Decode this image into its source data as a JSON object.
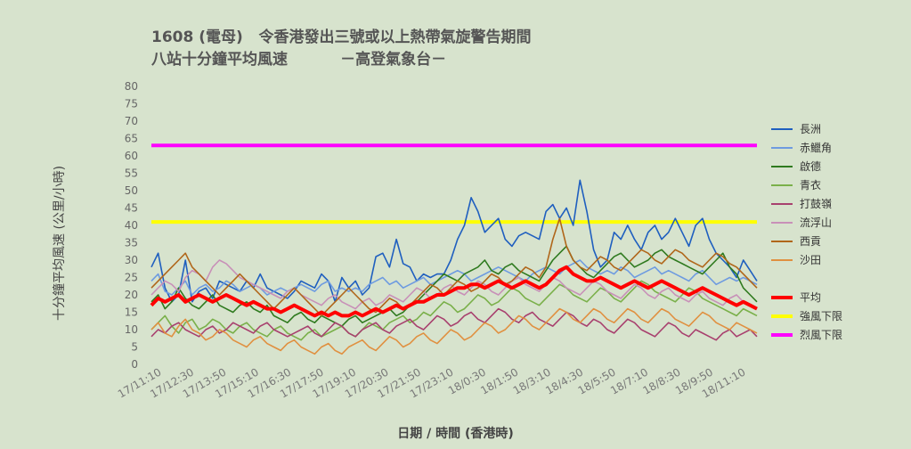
{
  "title_line1": "1608 (電母)   令香港發出三號或以上熱帶氣旋警告期間",
  "title_line2": "八站十分鐘平均風速          －高登氣象台－",
  "chart_data": {
    "type": "line",
    "ylabel": "十分鐘平均風速 (公里/小時)",
    "xlabel": "日期 / 時間 (香港時)",
    "ylim": [
      0,
      80
    ],
    "yticks": [
      0,
      5,
      10,
      15,
      20,
      25,
      30,
      35,
      40,
      45,
      50,
      55,
      60,
      65,
      70,
      75,
      80
    ],
    "xticks": [
      "17/11:10",
      "17/12:30",
      "17/13:50",
      "17/15:10",
      "17/16:30",
      "17/17:50",
      "17/19:10",
      "17/20:30",
      "17/21:50",
      "17/23:10",
      "18/0:30",
      "18/1:50",
      "18/3:10",
      "18/4:30",
      "18/5:50",
      "18/7:10",
      "18/8:30",
      "18/9:50",
      "18/11:10"
    ],
    "grid": false,
    "legend_position": "right",
    "thresholds": [
      {
        "name": "強風下限",
        "value": 41,
        "color": "#ffff00"
      },
      {
        "name": "烈風下限",
        "value": 63,
        "color": "#ff00ff"
      }
    ],
    "series": [
      {
        "name": "長洲",
        "color": "#1f5fbf",
        "values": [
          28,
          32,
          22,
          18,
          20,
          30,
          18,
          21,
          22,
          19,
          24,
          23,
          22,
          21,
          24,
          22,
          26,
          22,
          21,
          20,
          19,
          21,
          24,
          23,
          22,
          26,
          24,
          18,
          25,
          22,
          24,
          20,
          22,
          31,
          32,
          28,
          36,
          29,
          28,
          24,
          26,
          25,
          26,
          26,
          30,
          36,
          40,
          48,
          44,
          38,
          40,
          42,
          36,
          34,
          37,
          38,
          37,
          36,
          44,
          46,
          42,
          45,
          40,
          53,
          44,
          33,
          28,
          30,
          38,
          36,
          40,
          36,
          33,
          38,
          40,
          36,
          38,
          42,
          38,
          34,
          40,
          42,
          36,
          32,
          30,
          28,
          25,
          30,
          27,
          24
        ]
      },
      {
        "name": "赤鱲角",
        "color": "#6e9be0",
        "values": [
          24,
          26,
          21,
          20,
          22,
          24,
          20,
          22,
          23,
          21,
          22,
          24,
          23,
          21,
          22,
          23,
          22,
          20,
          21,
          22,
          21,
          22,
          23,
          22,
          21,
          23,
          24,
          21,
          22,
          21,
          22,
          21,
          23,
          24,
          25,
          23,
          24,
          22,
          23,
          24,
          25,
          23,
          24,
          25,
          26,
          27,
          26,
          24,
          25,
          26,
          27,
          28,
          27,
          26,
          25,
          24,
          26,
          27,
          28,
          27,
          26,
          28,
          29,
          30,
          28,
          27,
          26,
          27,
          26,
          28,
          27,
          25,
          26,
          27,
          28,
          26,
          27,
          26,
          25,
          24,
          26,
          27,
          25,
          23,
          24,
          25,
          24,
          25,
          24,
          23
        ]
      },
      {
        "name": "啟德",
        "color": "#2f7a1f",
        "values": [
          18,
          20,
          16,
          18,
          22,
          19,
          17,
          16,
          18,
          20,
          17,
          16,
          15,
          17,
          18,
          16,
          15,
          17,
          14,
          13,
          12,
          14,
          15,
          13,
          12,
          14,
          13,
          12,
          11,
          13,
          14,
          12,
          13,
          14,
          15,
          16,
          14,
          15,
          17,
          18,
          20,
          22,
          24,
          26,
          25,
          24,
          26,
          27,
          28,
          30,
          27,
          26,
          28,
          29,
          27,
          26,
          25,
          24,
          27,
          30,
          32,
          34,
          30,
          28,
          26,
          25,
          27,
          29,
          31,
          32,
          30,
          28,
          29,
          30,
          32,
          33,
          31,
          30,
          29,
          28,
          27,
          26,
          28,
          30,
          32,
          28,
          26,
          22,
          20,
          18
        ]
      },
      {
        "name": "青衣",
        "color": "#7ab04a",
        "values": [
          10,
          12,
          14,
          11,
          9,
          12,
          13,
          10,
          11,
          13,
          12,
          10,
          9,
          11,
          12,
          10,
          9,
          8,
          10,
          11,
          9,
          8,
          7,
          9,
          10,
          8,
          9,
          10,
          11,
          9,
          8,
          10,
          12,
          11,
          10,
          12,
          13,
          14,
          12,
          13,
          15,
          14,
          16,
          18,
          17,
          15,
          16,
          18,
          20,
          19,
          17,
          18,
          20,
          22,
          21,
          19,
          18,
          17,
          19,
          21,
          23,
          22,
          20,
          19,
          18,
          20,
          22,
          21,
          19,
          18,
          20,
          22,
          24,
          23,
          21,
          20,
          19,
          18,
          20,
          22,
          21,
          19,
          18,
          17,
          16,
          15,
          14,
          16,
          15,
          14
        ]
      },
      {
        "name": "打鼓嶺",
        "color": "#a8406e",
        "values": [
          8,
          10,
          9,
          11,
          12,
          10,
          9,
          8,
          10,
          11,
          9,
          10,
          12,
          11,
          10,
          9,
          11,
          12,
          10,
          9,
          8,
          9,
          10,
          11,
          9,
          8,
          10,
          12,
          11,
          9,
          8,
          10,
          11,
          12,
          10,
          9,
          11,
          12,
          13,
          11,
          10,
          12,
          14,
          13,
          11,
          12,
          14,
          15,
          13,
          12,
          14,
          16,
          15,
          13,
          12,
          14,
          15,
          13,
          12,
          11,
          13,
          15,
          14,
          12,
          11,
          13,
          12,
          10,
          9,
          11,
          13,
          12,
          10,
          9,
          8,
          10,
          12,
          11,
          9,
          8,
          10,
          9,
          8,
          7,
          9,
          10,
          8,
          9,
          10,
          8
        ]
      },
      {
        "name": "流浮山",
        "color": "#c890b8",
        "values": [
          20,
          22,
          24,
          23,
          21,
          25,
          27,
          26,
          24,
          28,
          30,
          29,
          27,
          25,
          24,
          23,
          22,
          21,
          20,
          19,
          21,
          22,
          20,
          19,
          18,
          17,
          19,
          20,
          18,
          17,
          16,
          18,
          19,
          17,
          18,
          20,
          19,
          18,
          20,
          22,
          21,
          19,
          20,
          22,
          23,
          21,
          20,
          22,
          24,
          23,
          21,
          20,
          22,
          24,
          25,
          23,
          22,
          21,
          23,
          25,
          24,
          22,
          21,
          20,
          22,
          24,
          23,
          21,
          20,
          19,
          21,
          23,
          22,
          20,
          19,
          21,
          22,
          20,
          19,
          18,
          20,
          21,
          19,
          18,
          17,
          19,
          20,
          18,
          17,
          16
        ]
      },
      {
        "name": "西貢",
        "color": "#b0661a",
        "values": [
          22,
          24,
          26,
          28,
          30,
          32,
          28,
          26,
          24,
          22,
          20,
          22,
          24,
          26,
          24,
          22,
          20,
          18,
          16,
          18,
          20,
          22,
          20,
          18,
          16,
          14,
          16,
          18,
          20,
          22,
          20,
          18,
          16,
          15,
          17,
          19,
          18,
          16,
          17,
          19,
          21,
          23,
          22,
          20,
          22,
          24,
          23,
          21,
          22,
          24,
          26,
          25,
          23,
          24,
          26,
          28,
          27,
          25,
          28,
          36,
          42,
          34,
          30,
          28,
          27,
          29,
          31,
          30,
          28,
          27,
          29,
          31,
          33,
          32,
          30,
          29,
          31,
          33,
          32,
          30,
          29,
          28,
          30,
          32,
          31,
          29,
          28,
          26,
          24,
          22
        ]
      },
      {
        "name": "沙田",
        "color": "#e09040",
        "values": [
          10,
          12,
          9,
          8,
          11,
          13,
          10,
          9,
          7,
          8,
          10,
          9,
          7,
          6,
          5,
          7,
          8,
          6,
          5,
          4,
          6,
          7,
          5,
          4,
          3,
          5,
          6,
          4,
          3,
          5,
          6,
          7,
          5,
          4,
          6,
          8,
          7,
          5,
          6,
          8,
          9,
          7,
          6,
          8,
          10,
          9,
          7,
          8,
          10,
          12,
          11,
          9,
          10,
          12,
          14,
          13,
          11,
          10,
          12,
          14,
          16,
          15,
          13,
          12,
          14,
          16,
          15,
          13,
          12,
          14,
          16,
          15,
          13,
          12,
          14,
          16,
          15,
          13,
          12,
          11,
          13,
          15,
          14,
          12,
          11,
          10,
          12,
          11,
          10,
          9
        ]
      },
      {
        "name": "平均",
        "color": "#ff0000",
        "width": 4,
        "values": [
          17,
          19,
          18,
          19,
          20,
          18,
          19,
          20,
          19,
          18,
          19,
          20,
          19,
          18,
          17,
          18,
          17,
          16,
          16,
          15,
          16,
          17,
          16,
          15,
          14,
          15,
          14,
          15,
          14,
          14,
          15,
          14,
          15,
          16,
          15,
          16,
          17,
          16,
          17,
          18,
          18,
          19,
          20,
          20,
          21,
          22,
          22,
          23,
          23,
          22,
          23,
          24,
          23,
          22,
          23,
          24,
          23,
          22,
          23,
          25,
          27,
          28,
          26,
          25,
          24,
          24,
          25,
          24,
          23,
          22,
          23,
          24,
          23,
          22,
          23,
          24,
          23,
          22,
          21,
          20,
          21,
          22,
          21,
          20,
          19,
          18,
          17,
          18,
          17,
          16
        ]
      }
    ]
  }
}
